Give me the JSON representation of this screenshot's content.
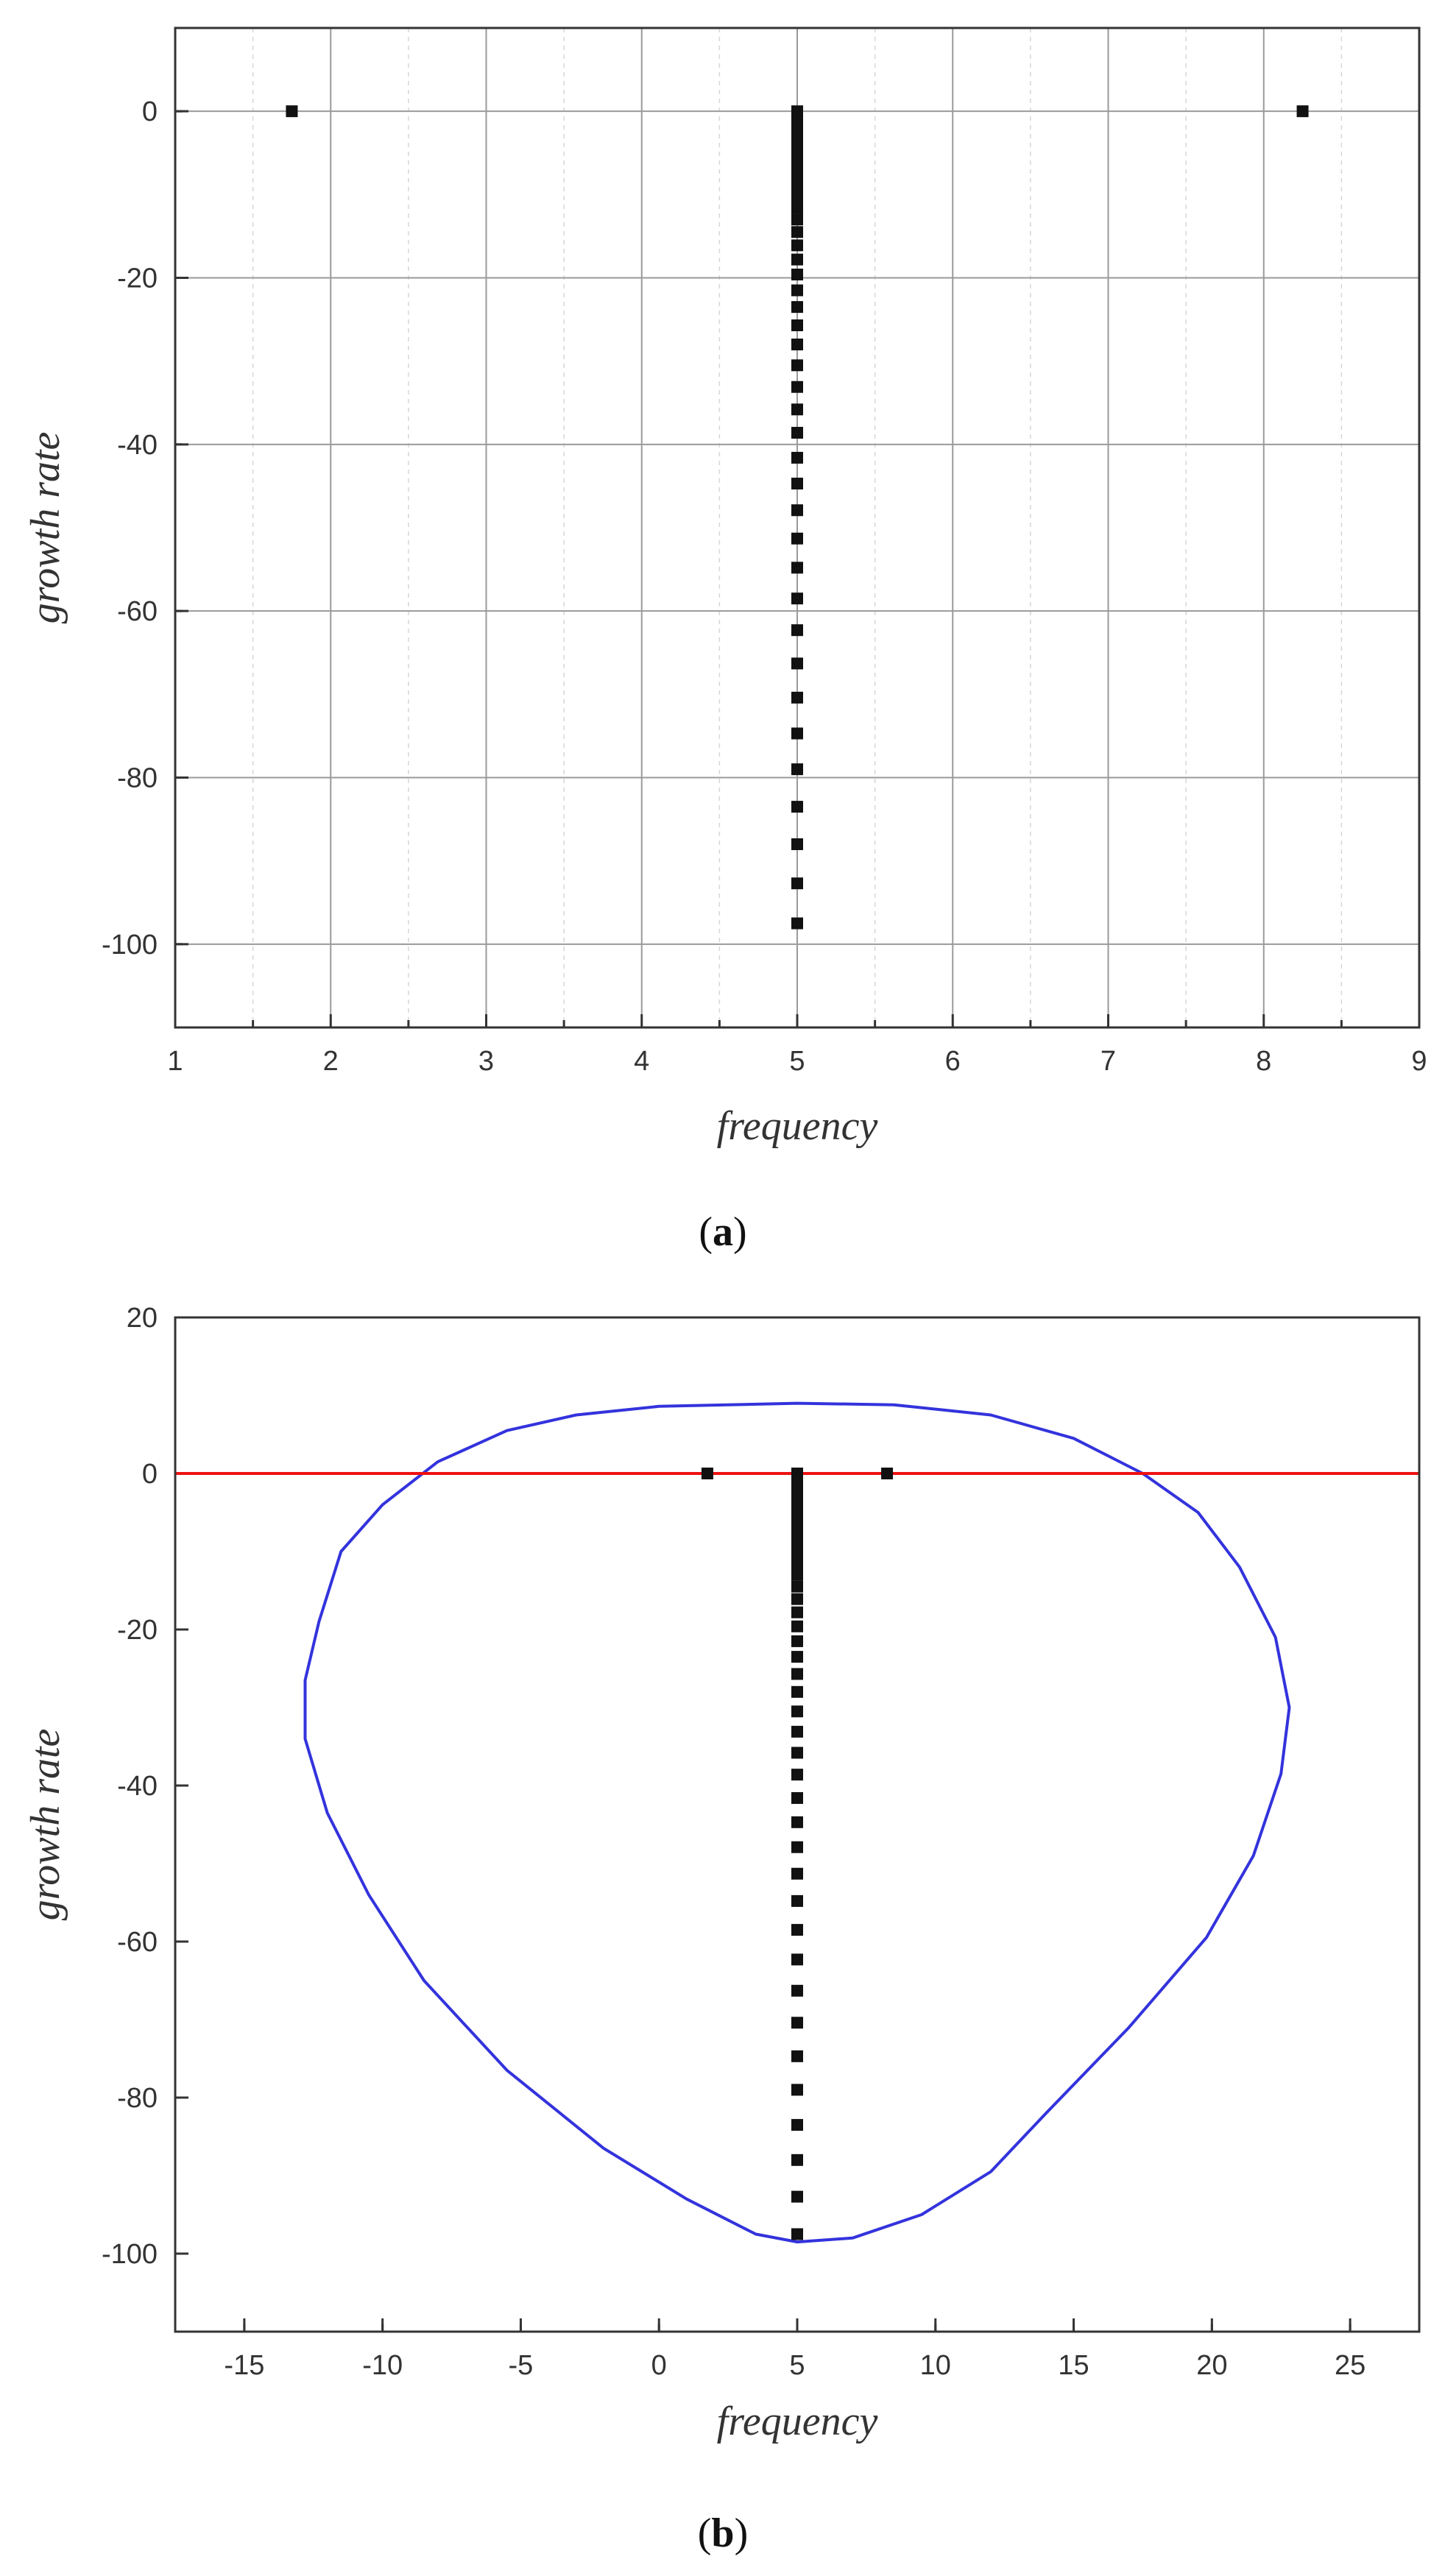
{
  "chart_data": [
    {
      "panel_label": "a",
      "type": "scatter",
      "xlabel": "frequency",
      "ylabel": "growth rate",
      "xlim": [
        1,
        9
      ],
      "ylim": [
        -110,
        10
      ],
      "x_ticks": [
        1,
        2,
        3,
        4,
        5,
        6,
        7,
        8,
        9
      ],
      "y_ticks": [
        0,
        -20,
        -40,
        -60,
        -80,
        -100
      ],
      "grid": true,
      "series": [
        {
          "marker": "square",
          "color": "#111111",
          "points": [
            [
              1.75,
              0
            ],
            [
              8.25,
              0
            ],
            [
              5,
              0
            ],
            [
              5,
              -0.6
            ],
            [
              5,
              -1.2
            ],
            [
              5,
              -1.9
            ],
            [
              5,
              -2.6
            ],
            [
              5,
              -3.4
            ],
            [
              5,
              -4.2
            ],
            [
              5,
              -5.1
            ],
            [
              5,
              -6.0
            ],
            [
              5,
              -7.0
            ],
            [
              5,
              -8.0
            ],
            [
              5,
              -9.1
            ],
            [
              5,
              -10.3
            ],
            [
              5,
              -11.6
            ],
            [
              5,
              -13.0
            ],
            [
              5,
              -14.5
            ],
            [
              5,
              -16.1
            ],
            [
              5,
              -17.8
            ],
            [
              5,
              -19.6
            ],
            [
              5,
              -21.5
            ],
            [
              5,
              -23.5
            ],
            [
              5,
              -25.7
            ],
            [
              5,
              -28.0
            ],
            [
              5,
              -30.5
            ],
            [
              5,
              -33.1
            ],
            [
              5,
              -35.8
            ],
            [
              5,
              -38.6
            ],
            [
              5,
              -41.6
            ],
            [
              5,
              -44.7
            ],
            [
              5,
              -47.9
            ],
            [
              5,
              -51.3
            ],
            [
              5,
              -54.8
            ],
            [
              5,
              -58.5
            ],
            [
              5,
              -62.3
            ],
            [
              5,
              -66.3
            ],
            [
              5,
              -70.4
            ],
            [
              5,
              -74.7
            ],
            [
              5,
              -79.0
            ],
            [
              5,
              -83.5
            ],
            [
              5,
              -88.0
            ],
            [
              5,
              -92.7
            ],
            [
              5,
              -97.5
            ]
          ]
        }
      ]
    },
    {
      "panel_label": "b",
      "type": "scatter",
      "xlabel": "frequency",
      "ylabel": "growth rate",
      "xlim": [
        -17.5,
        27.5
      ],
      "ylim": [
        -110,
        20
      ],
      "x_ticks": [
        -15,
        -10,
        -5,
        0,
        5,
        10,
        15,
        20,
        25
      ],
      "y_ticks": [
        20,
        0,
        -20,
        -40,
        -60,
        -80,
        -100
      ],
      "grid": false,
      "series": [
        {
          "marker": "square",
          "color": "#111111",
          "points": [
            [
              1.75,
              0
            ],
            [
              8.25,
              0
            ],
            [
              5,
              0
            ],
            [
              5,
              -0.6
            ],
            [
              5,
              -1.2
            ],
            [
              5,
              -1.9
            ],
            [
              5,
              -2.6
            ],
            [
              5,
              -3.4
            ],
            [
              5,
              -4.2
            ],
            [
              5,
              -5.1
            ],
            [
              5,
              -6.0
            ],
            [
              5,
              -7.0
            ],
            [
              5,
              -8.0
            ],
            [
              5,
              -9.1
            ],
            [
              5,
              -10.3
            ],
            [
              5,
              -11.6
            ],
            [
              5,
              -13.0
            ],
            [
              5,
              -14.5
            ],
            [
              5,
              -16.1
            ],
            [
              5,
              -17.8
            ],
            [
              5,
              -19.6
            ],
            [
              5,
              -21.5
            ],
            [
              5,
              -23.5
            ],
            [
              5,
              -25.7
            ],
            [
              5,
              -28.0
            ],
            [
              5,
              -30.5
            ],
            [
              5,
              -33.1
            ],
            [
              5,
              -35.8
            ],
            [
              5,
              -38.6
            ],
            [
              5,
              -41.6
            ],
            [
              5,
              -44.7
            ],
            [
              5,
              -47.9
            ],
            [
              5,
              -51.3
            ],
            [
              5,
              -54.8
            ],
            [
              5,
              -58.5
            ],
            [
              5,
              -62.3
            ],
            [
              5,
              -66.3
            ],
            [
              5,
              -70.4
            ],
            [
              5,
              -74.7
            ],
            [
              5,
              -79.0
            ],
            [
              5,
              -83.5
            ],
            [
              5,
              -88.0
            ],
            [
              5,
              -92.7
            ],
            [
              5,
              -97.5
            ]
          ]
        }
      ],
      "lines": [
        {
          "kind": "curve",
          "color": "#3333dd",
          "points": [
            [
              5,
              9
            ],
            [
              0,
              8.6
            ],
            [
              -3,
              7.5
            ],
            [
              -5.5,
              5.5
            ],
            [
              -8,
              1.5
            ],
            [
              -10,
              -4
            ],
            [
              -11.5,
              -10
            ],
            [
              -12.3,
              -19
            ],
            [
              -12.8,
              -26.5
            ],
            [
              -12.8,
              -34
            ],
            [
              -12,
              -43.5
            ],
            [
              -10.5,
              -54
            ],
            [
              -8.5,
              -65
            ],
            [
              -5.5,
              -76.5
            ],
            [
              -2,
              -86.5
            ],
            [
              1,
              -93
            ],
            [
              3.5,
              -97.5
            ],
            [
              5,
              -98.5
            ],
            [
              7,
              -98
            ],
            [
              9.5,
              -95
            ],
            [
              12,
              -89.5
            ],
            [
              14,
              -82
            ],
            [
              17,
              -71
            ],
            [
              19.8,
              -59.5
            ],
            [
              21.5,
              -49
            ],
            [
              22.5,
              -38.5
            ],
            [
              22.8,
              -30
            ],
            [
              22.3,
              -21
            ],
            [
              21,
              -12
            ],
            [
              19.5,
              -5
            ],
            [
              17.5,
              0
            ],
            [
              15,
              4.5
            ],
            [
              12,
              7.5
            ],
            [
              8.5,
              8.8
            ],
            [
              5,
              9
            ]
          ]
        },
        {
          "kind": "hline",
          "y": 0,
          "color": "#ee1111"
        }
      ]
    }
  ]
}
